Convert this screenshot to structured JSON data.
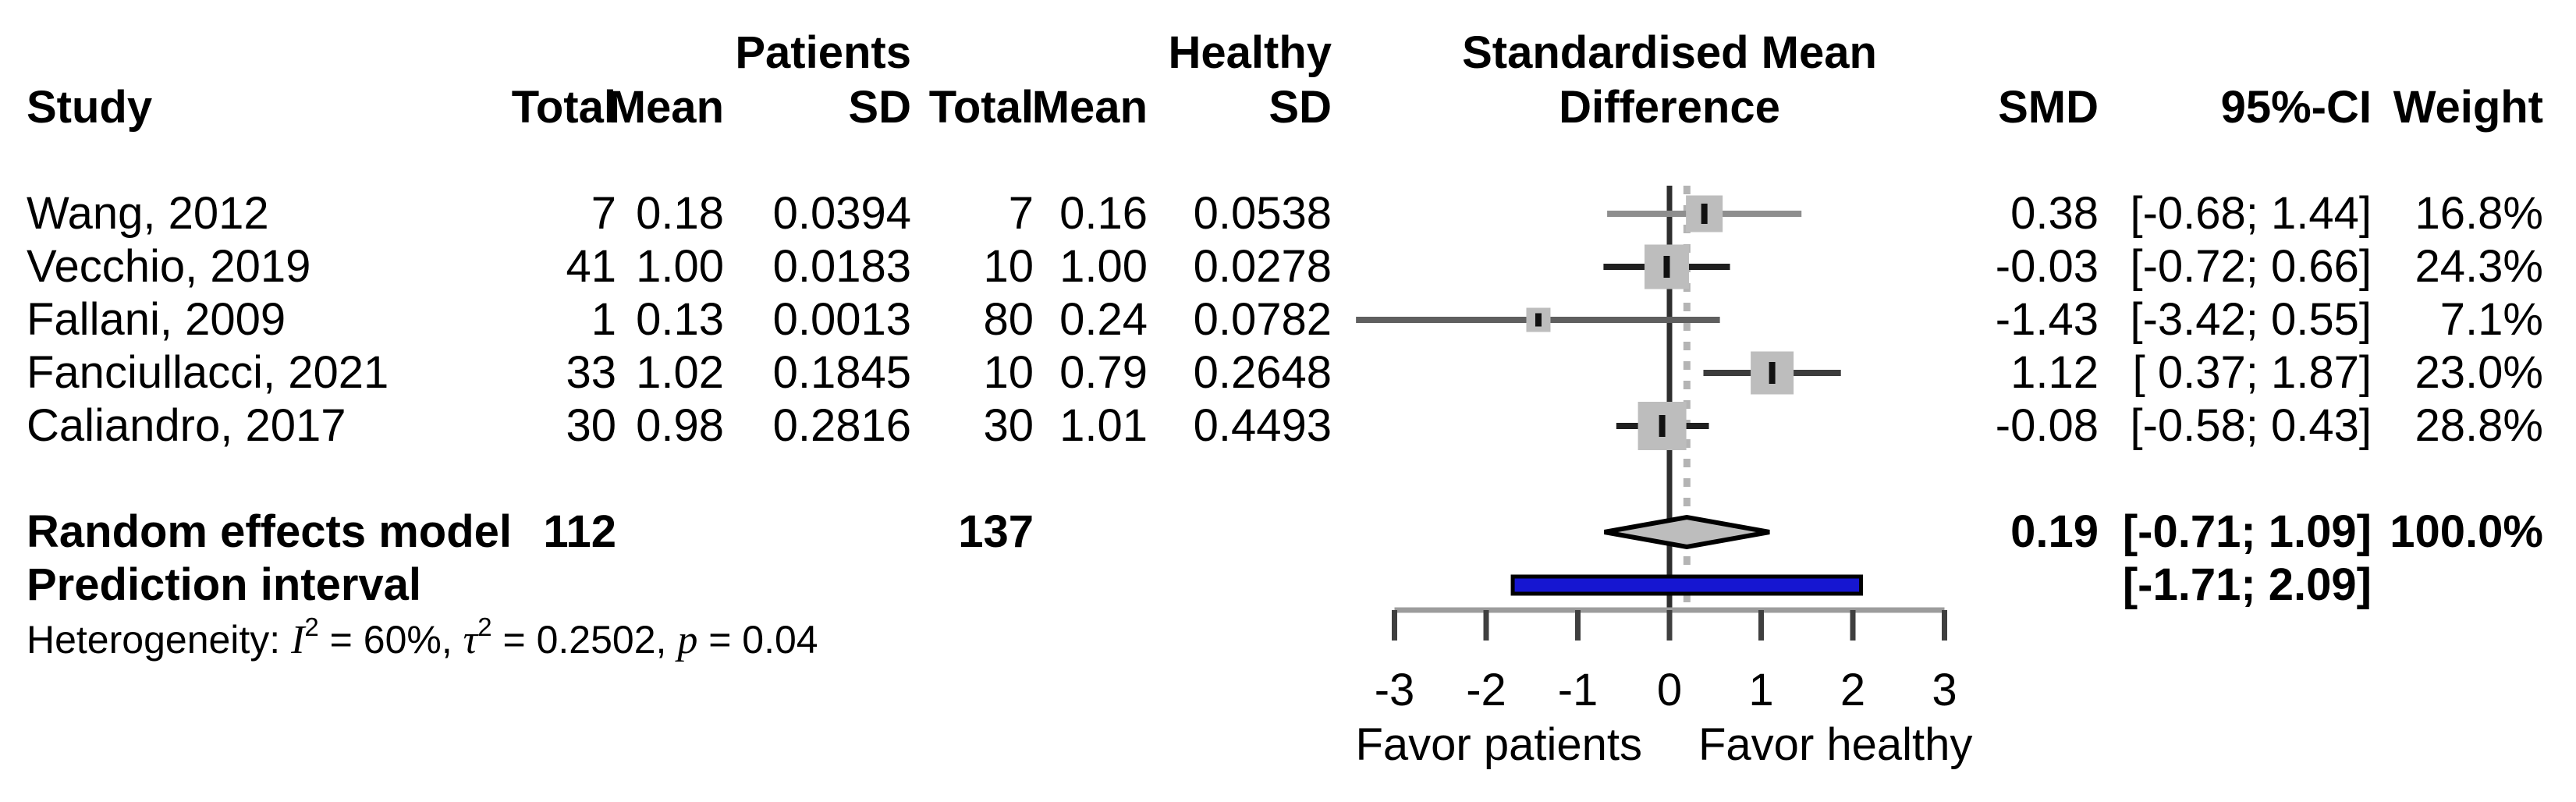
{
  "header": {
    "study": "Study",
    "group_patients": "Patients",
    "group_healthy": "Healthy",
    "patients_total": "Total",
    "patients_mean": "Mean",
    "patients_sd": "SD",
    "healthy_total": "Total",
    "healthy_mean": "Mean",
    "healthy_sd": "SD",
    "plot_title_line1": "Standardised Mean",
    "plot_title_line2": "Difference",
    "smd": "SMD",
    "ci": "95%-CI",
    "weight": "Weight"
  },
  "chart_data": {
    "type": "forest",
    "effect_measure": "Standardised Mean Difference",
    "xlim": [
      -3,
      3
    ],
    "axis": {
      "ticks": [
        "-3",
        "-2",
        "-1",
        "0",
        "1",
        "2",
        "3"
      ],
      "tick_values": [
        -3,
        -2,
        -1,
        0,
        1,
        2,
        3
      ],
      "label_left": "Favor patients",
      "label_right": "Favor healthy"
    },
    "reference_value": 0,
    "pooled_line_value": 0.19,
    "studies": [
      {
        "label": "Wang, 2012",
        "patients": {
          "total": "7",
          "mean": "0.18",
          "sd": "0.0394"
        },
        "healthy": {
          "total": "7",
          "mean": "0.16",
          "sd": "0.0538"
        },
        "smd": 0.38,
        "ci_lo": -0.68,
        "ci_hi": 1.44,
        "weight": 16.8,
        "smd_text": "0.38",
        "ci_text": "[-0.68; 1.44]",
        "weight_text": "16.8%",
        "ci_color": "#8e8e8e"
      },
      {
        "label": "Vecchio, 2019",
        "patients": {
          "total": "41",
          "mean": "1.00",
          "sd": "0.0183"
        },
        "healthy": {
          "total": "10",
          "mean": "1.00",
          "sd": "0.0278"
        },
        "smd": -0.03,
        "ci_lo": -0.72,
        "ci_hi": 0.66,
        "weight": 24.3,
        "smd_text": "-0.03",
        "ci_text": "[-0.72; 0.66]",
        "weight_text": "24.3%",
        "ci_color": "#1f1f1f"
      },
      {
        "label": "Fallani, 2009",
        "patients": {
          "total": "1",
          "mean": "0.13",
          "sd": "0.0013"
        },
        "healthy": {
          "total": "80",
          "mean": "0.24",
          "sd": "0.0782"
        },
        "smd": -1.43,
        "ci_lo": -3.42,
        "ci_hi": 0.55,
        "weight": 7.1,
        "smd_text": "-1.43",
        "ci_text": "[-3.42; 0.55]",
        "weight_text": "7.1%",
        "ci_color": "#5f5f5f"
      },
      {
        "label": "Fanciullacci, 2021",
        "patients": {
          "total": "33",
          "mean": "1.02",
          "sd": "0.1845"
        },
        "healthy": {
          "total": "10",
          "mean": "0.79",
          "sd": "0.2648"
        },
        "smd": 1.12,
        "ci_lo": 0.37,
        "ci_hi": 1.87,
        "weight": 23.0,
        "smd_text": "1.12",
        "ci_text": "[ 0.37; 1.87]",
        "weight_text": "23.0%",
        "ci_color": "#3c3c3c"
      },
      {
        "label": "Caliandro, 2017",
        "patients": {
          "total": "30",
          "mean": "0.98",
          "sd": "0.2816"
        },
        "healthy": {
          "total": "30",
          "mean": "1.01",
          "sd": "0.4493"
        },
        "smd": -0.08,
        "ci_lo": -0.58,
        "ci_hi": 0.43,
        "weight": 28.8,
        "smd_text": "-0.08",
        "ci_text": "[-0.58; 0.43]",
        "weight_text": "28.8%",
        "ci_color": "#1f1f1f"
      }
    ],
    "summary": {
      "label": "Random effects model",
      "patients_total": "112",
      "healthy_total": "137",
      "smd": 0.19,
      "ci_lo": -0.71,
      "ci_hi": 1.09,
      "smd_text": "0.19",
      "ci_text": "[-0.71; 1.09]",
      "weight_text": "100.0%"
    },
    "prediction": {
      "label": "Prediction interval",
      "ci_lo": -1.71,
      "ci_hi": 2.09,
      "ci_text": "[-1.71; 2.09]"
    },
    "heterogeneity": {
      "prefix": "Heterogeneity: ",
      "i2_label": "I",
      "i2_sup": "2",
      "i2_rest": " = 60%, ",
      "tau_label": "τ",
      "tau_sup": "2",
      "tau_rest": " = 0.2502, ",
      "p_label": "p",
      "p_rest": " = 0.04"
    },
    "colors": {
      "square": "#bdbdbd",
      "marker": "#111111",
      "diamond_fill": "#bdbdbd",
      "diamond_stroke": "#000000",
      "prediction_bar": "#1616d1",
      "prediction_border": "#000000",
      "axis": "#9c9c9c",
      "tick": "#3f3f3f",
      "reference_line": "#2e2e2e",
      "pooled_dashed_line": "#b4b4b4"
    }
  }
}
